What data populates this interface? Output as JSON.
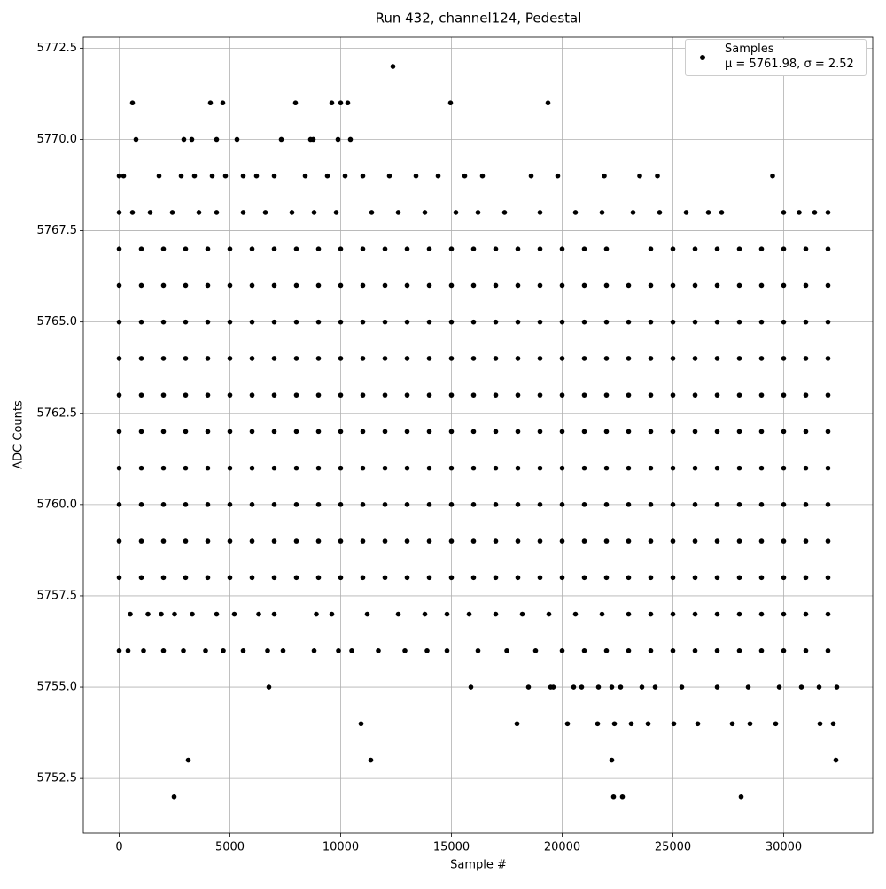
{
  "chart_data": {
    "type": "scatter",
    "title": "Run 432, channel124, Pedestal",
    "x_label": "Sample #",
    "y_label": "ADC Counts",
    "xlim": [
      -1620,
      34020
    ],
    "ylim": [
      5751,
      5772.8
    ],
    "xticks": [
      0,
      5000,
      10000,
      15000,
      20000,
      25000,
      30000
    ],
    "yticks": [
      5752.5,
      {
        "value": 5755,
        "label": "5755.0"
      },
      5757.5,
      {
        "value": 5760,
        "label": "5760.0"
      },
      5762.5,
      {
        "value": 5765,
        "label": "5765.0"
      },
      5767.5,
      {
        "value": 5770,
        "label": "5770.0"
      },
      5772.5
    ],
    "grid": true,
    "legend": "upper right",
    "series": [
      {
        "name": "Samples\nμ = 5761.98, σ = 2.52",
        "color": "#000000",
        "x": [
          12360,
          600,
          4120,
          4680,
          7960,
          9600,
          10000,
          10320,
          14960,
          19360,
          760,
          2920,
          3280,
          4400,
          5320,
          7320,
          8640,
          8760,
          9880,
          10440,
          0,
          200,
          1800,
          2800,
          3400,
          4200,
          4800,
          5600,
          6200,
          7000,
          8400,
          9400,
          10200,
          11000,
          12200,
          13400,
          14400,
          15600,
          16400,
          18600,
          19800,
          21900,
          23500,
          24300,
          29500,
          0,
          600,
          1400,
          2400,
          3600,
          4400,
          5600,
          6600,
          7800,
          8800,
          9800,
          11400,
          12600,
          13800,
          15200,
          16200,
          17400,
          19000,
          20600,
          21800,
          23200,
          24400,
          25600,
          26600,
          27200,
          30000,
          30700,
          31400,
          32000,
          0,
          1000,
          2000,
          3000,
          4000,
          5000,
          6000,
          7000,
          8000,
          9000,
          10000,
          11000,
          12000,
          13000,
          14000,
          15000,
          16000,
          17000,
          18000,
          19000,
          20000,
          21000,
          22000,
          24000,
          25000,
          26000,
          27000,
          28000,
          29000,
          30000,
          31000,
          32000,
          0,
          1000,
          2000,
          3000,
          4000,
          5000,
          6000,
          7000,
          8000,
          9000,
          10000,
          11000,
          12000,
          13000,
          14000,
          15000,
          16000,
          17000,
          18000,
          19000,
          20000,
          21000,
          22000,
          23000,
          24000,
          25000,
          26000,
          27000,
          28000,
          29000,
          30000,
          31000,
          32000,
          0,
          1000,
          2000,
          3000,
          4000,
          5000,
          6000,
          7000,
          8000,
          9000,
          10000,
          11000,
          12000,
          13000,
          14000,
          15000,
          16000,
          17000,
          18000,
          19000,
          20000,
          21000,
          22000,
          23000,
          24000,
          25000,
          26000,
          27000,
          28000,
          29000,
          30000,
          31000,
          32000,
          0,
          1000,
          2000,
          3000,
          4000,
          5000,
          6000,
          7000,
          8000,
          9000,
          10000,
          11000,
          12000,
          13000,
          14000,
          15000,
          16000,
          17000,
          18000,
          19000,
          20000,
          21000,
          22000,
          23000,
          24000,
          25000,
          26000,
          27000,
          28000,
          29000,
          30000,
          31000,
          32000,
          0,
          1000,
          2000,
          3000,
          4000,
          5000,
          6000,
          7000,
          8000,
          9000,
          10000,
          11000,
          12000,
          13000,
          14000,
          15000,
          16000,
          17000,
          18000,
          19000,
          20000,
          21000,
          22000,
          23000,
          24000,
          25000,
          26000,
          27000,
          28000,
          29000,
          30000,
          31000,
          32000,
          0,
          1000,
          2000,
          3000,
          4000,
          5000,
          6000,
          7000,
          8000,
          9000,
          10000,
          11000,
          12000,
          13000,
          14000,
          15000,
          16000,
          17000,
          18000,
          19000,
          20000,
          21000,
          22000,
          23000,
          24000,
          25000,
          26000,
          27000,
          28000,
          29000,
          30000,
          31000,
          32000,
          0,
          1000,
          2000,
          3000,
          4000,
          5000,
          6000,
          7000,
          8000,
          9000,
          10000,
          11000,
          12000,
          13000,
          14000,
          15000,
          16000,
          17000,
          18000,
          19000,
          20000,
          21000,
          22000,
          23000,
          24000,
          25000,
          26000,
          27000,
          28000,
          29000,
          30000,
          31000,
          32000,
          0,
          1000,
          2000,
          3000,
          4000,
          5000,
          6000,
          7000,
          8000,
          9000,
          10000,
          11000,
          12000,
          13000,
          14000,
          15000,
          16000,
          17000,
          18000,
          19000,
          20000,
          21000,
          22000,
          23000,
          24000,
          25000,
          26000,
          27000,
          28000,
          29000,
          30000,
          31000,
          32000,
          0,
          1000,
          2000,
          3000,
          4000,
          5000,
          6000,
          7000,
          8000,
          9000,
          10000,
          11000,
          12000,
          13000,
          14000,
          15000,
          16000,
          17000,
          18000,
          19000,
          20000,
          21000,
          22000,
          23000,
          24000,
          25000,
          26000,
          27000,
          28000,
          29000,
          30000,
          31000,
          32000,
          0,
          1000,
          2000,
          3000,
          4000,
          5000,
          6000,
          7000,
          8000,
          9000,
          10000,
          11000,
          12000,
          13000,
          14000,
          15000,
          16000,
          17000,
          18000,
          19000,
          20000,
          21000,
          22000,
          23000,
          24000,
          25000,
          26000,
          27000,
          28000,
          29000,
          30000,
          31000,
          32000,
          500,
          1300,
          1900,
          2500,
          3300,
          4400,
          5200,
          6300,
          7000,
          8900,
          9600,
          11200,
          12600,
          13800,
          14800,
          15800,
          17000,
          18200,
          19400,
          20600,
          21800,
          23000,
          24000,
          25000,
          26000,
          27000,
          28000,
          29000,
          30000,
          31000,
          32000,
          0,
          400,
          1100,
          2000,
          2900,
          3900,
          4700,
          5600,
          6700,
          7400,
          8800,
          9900,
          10500,
          11700,
          12900,
          13900,
          14800,
          16200,
          17500,
          18800,
          20000,
          21000,
          22000,
          23000,
          24000,
          25000,
          26000,
          27000,
          28000,
          29000,
          30000,
          31000,
          32000,
          6760,
          15880,
          18480,
          19480,
          19600,
          20520,
          20880,
          21640,
          22240,
          22640,
          23600,
          24200,
          25400,
          27000,
          28400,
          29800,
          30800,
          31600,
          32400,
          10920,
          17960,
          20240,
          21600,
          22360,
          23120,
          23880,
          25040,
          26120,
          27680,
          28480,
          29640,
          31640,
          32240,
          3120,
          11360,
          22240,
          32360,
          2480,
          22320,
          22720,
          28080
        ],
        "values": [
          5772,
          5771,
          5771,
          5771,
          5771,
          5771,
          5771,
          5771,
          5771,
          5771,
          5770,
          5770,
          5770,
          5770,
          5770,
          5770,
          5770,
          5770,
          5770,
          5770,
          5769,
          5769,
          5769,
          5769,
          5769,
          5769,
          5769,
          5769,
          5769,
          5769,
          5769,
          5769,
          5769,
          5769,
          5769,
          5769,
          5769,
          5769,
          5769,
          5769,
          5769,
          5769,
          5769,
          5769,
          5769,
          5768,
          5768,
          5768,
          5768,
          5768,
          5768,
          5768,
          5768,
          5768,
          5768,
          5768,
          5768,
          5768,
          5768,
          5768,
          5768,
          5768,
          5768,
          5768,
          5768,
          5768,
          5768,
          5768,
          5768,
          5768,
          5768,
          5768,
          5768,
          5768,
          5767,
          5767,
          5767,
          5767,
          5767,
          5767,
          5767,
          5767,
          5767,
          5767,
          5767,
          5767,
          5767,
          5767,
          5767,
          5767,
          5767,
          5767,
          5767,
          5767,
          5767,
          5767,
          5767,
          5767,
          5767,
          5767,
          5767,
          5767,
          5767,
          5767,
          5767,
          5767,
          5766,
          5766,
          5766,
          5766,
          5766,
          5766,
          5766,
          5766,
          5766,
          5766,
          5766,
          5766,
          5766,
          5766,
          5766,
          5766,
          5766,
          5766,
          5766,
          5766,
          5766,
          5766,
          5766,
          5766,
          5766,
          5766,
          5766,
          5766,
          5766,
          5766,
          5766,
          5766,
          5766,
          5765,
          5765,
          5765,
          5765,
          5765,
          5765,
          5765,
          5765,
          5765,
          5765,
          5765,
          5765,
          5765,
          5765,
          5765,
          5765,
          5765,
          5765,
          5765,
          5765,
          5765,
          5765,
          5765,
          5765,
          5765,
          5765,
          5765,
          5765,
          5765,
          5765,
          5765,
          5765,
          5765,
          5764,
          5764,
          5764,
          5764,
          5764,
          5764,
          5764,
          5764,
          5764,
          5764,
          5764,
          5764,
          5764,
          5764,
          5764,
          5764,
          5764,
          5764,
          5764,
          5764,
          5764,
          5764,
          5764,
          5764,
          5764,
          5764,
          5764,
          5764,
          5764,
          5764,
          5764,
          5764,
          5764,
          5763,
          5763,
          5763,
          5763,
          5763,
          5763,
          5763,
          5763,
          5763,
          5763,
          5763,
          5763,
          5763,
          5763,
          5763,
          5763,
          5763,
          5763,
          5763,
          5763,
          5763,
          5763,
          5763,
          5763,
          5763,
          5763,
          5763,
          5763,
          5763,
          5763,
          5763,
          5763,
          5763,
          5762,
          5762,
          5762,
          5762,
          5762,
          5762,
          5762,
          5762,
          5762,
          5762,
          5762,
          5762,
          5762,
          5762,
          5762,
          5762,
          5762,
          5762,
          5762,
          5762,
          5762,
          5762,
          5762,
          5762,
          5762,
          5762,
          5762,
          5762,
          5762,
          5762,
          5762,
          5762,
          5762,
          5761,
          5761,
          5761,
          5761,
          5761,
          5761,
          5761,
          5761,
          5761,
          5761,
          5761,
          5761,
          5761,
          5761,
          5761,
          5761,
          5761,
          5761,
          5761,
          5761,
          5761,
          5761,
          5761,
          5761,
          5761,
          5761,
          5761,
          5761,
          5761,
          5761,
          5761,
          5761,
          5761,
          5760,
          5760,
          5760,
          5760,
          5760,
          5760,
          5760,
          5760,
          5760,
          5760,
          5760,
          5760,
          5760,
          5760,
          5760,
          5760,
          5760,
          5760,
          5760,
          5760,
          5760,
          5760,
          5760,
          5760,
          5760,
          5760,
          5760,
          5760,
          5760,
          5760,
          5760,
          5760,
          5760,
          5759,
          5759,
          5759,
          5759,
          5759,
          5759,
          5759,
          5759,
          5759,
          5759,
          5759,
          5759,
          5759,
          5759,
          5759,
          5759,
          5759,
          5759,
          5759,
          5759,
          5759,
          5759,
          5759,
          5759,
          5759,
          5759,
          5759,
          5759,
          5759,
          5759,
          5759,
          5759,
          5759,
          5758,
          5758,
          5758,
          5758,
          5758,
          5758,
          5758,
          5758,
          5758,
          5758,
          5758,
          5758,
          5758,
          5758,
          5758,
          5758,
          5758,
          5758,
          5758,
          5758,
          5758,
          5758,
          5758,
          5758,
          5758,
          5758,
          5758,
          5758,
          5758,
          5758,
          5758,
          5758,
          5758,
          5757,
          5757,
          5757,
          5757,
          5757,
          5757,
          5757,
          5757,
          5757,
          5757,
          5757,
          5757,
          5757,
          5757,
          5757,
          5757,
          5757,
          5757,
          5757,
          5757,
          5757,
          5757,
          5757,
          5757,
          5757,
          5757,
          5757,
          5757,
          5757,
          5757,
          5757,
          5756,
          5756,
          5756,
          5756,
          5756,
          5756,
          5756,
          5756,
          5756,
          5756,
          5756,
          5756,
          5756,
          5756,
          5756,
          5756,
          5756,
          5756,
          5756,
          5756,
          5756,
          5756,
          5756,
          5756,
          5756,
          5756,
          5756,
          5756,
          5756,
          5756,
          5756,
          5756,
          5756,
          5755,
          5755,
          5755,
          5755,
          5755,
          5755,
          5755,
          5755,
          5755,
          5755,
          5755,
          5755,
          5755,
          5755,
          5755,
          5755,
          5755,
          5755,
          5755,
          5754,
          5754,
          5754,
          5754,
          5754,
          5754,
          5754,
          5754,
          5754,
          5754,
          5754,
          5754,
          5754,
          5754,
          5753,
          5753,
          5753,
          5753,
          5752,
          5752,
          5752,
          5752
        ]
      }
    ]
  }
}
